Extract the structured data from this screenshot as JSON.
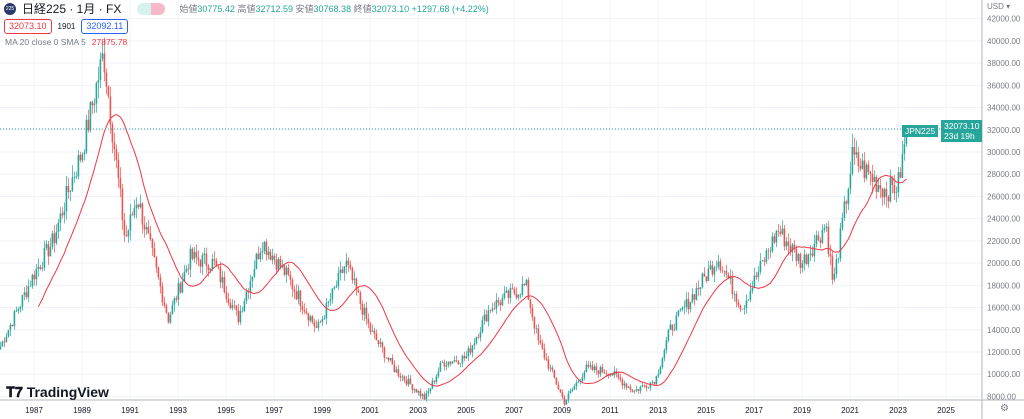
{
  "header": {
    "symbol": "日経225 · 1月 · FX",
    "logo_text": "225",
    "open_label": "始値",
    "open": "30775.42",
    "high_label": "高値",
    "high": "32712.59",
    "low_label": "安値",
    "low": "30768.38",
    "close_label": "終値",
    "close": "32073.10",
    "change": "+1297.68 (+4.22%)",
    "sell": "32073.10",
    "spread": "1901",
    "buy": "32092.11"
  },
  "indicator": {
    "label": "MA 20 close 0 SMA 5",
    "value": "27875.78"
  },
  "price_axis": {
    "currency": "USD ▾",
    "symbol_tag": "JPN225",
    "price_tag": "32073.10",
    "countdown": "23d 19h"
  },
  "watermark": "TradingView",
  "colors": {
    "up": "#26a69a",
    "down": "#ef5350",
    "ma": "#f23645"
  },
  "chart_data": {
    "type": "candlestick",
    "title": "日経225 · 1月 · FX",
    "yticks": [
      8000,
      10000,
      12000,
      14000,
      16000,
      18000,
      20000,
      22000,
      24000,
      26000,
      28000,
      30000,
      32000,
      34000,
      36000,
      38000,
      40000,
      42000
    ],
    "xticks": [
      "1987",
      "1989",
      "1991",
      "1993",
      "1995",
      "1997",
      "1999",
      "2001",
      "2003",
      "2005",
      "2007",
      "2009",
      "2011",
      "2013",
      "2015",
      "2017",
      "2019",
      "2021",
      "2023",
      "2025"
    ],
    "xtick_years": [
      1987,
      1989,
      1991,
      1993,
      1995,
      1997,
      1999,
      2001,
      2003,
      2005,
      2007,
      2009,
      2011,
      2013,
      2015,
      2017,
      2019,
      2021,
      2023,
      2025
    ],
    "approx_close_path": [
      [
        1985.6,
        12500
      ],
      [
        1987.0,
        19000
      ],
      [
        1987.8,
        22000
      ],
      [
        1988.5,
        27000
      ],
      [
        1989.0,
        30000
      ],
      [
        1989.9,
        38900
      ],
      [
        1990.8,
        22000
      ],
      [
        1991.3,
        26000
      ],
      [
        1992.6,
        15000
      ],
      [
        1993.5,
        20500
      ],
      [
        1994.5,
        20000
      ],
      [
        1995.5,
        15000
      ],
      [
        1996.5,
        22000
      ],
      [
        1997.5,
        19000
      ],
      [
        1998.8,
        14000
      ],
      [
        2000.0,
        20000
      ],
      [
        2001.0,
        14000
      ],
      [
        2002.0,
        10500
      ],
      [
        2003.3,
        7800
      ],
      [
        2004.0,
        11000
      ],
      [
        2005.0,
        11500
      ],
      [
        2006.0,
        16000
      ],
      [
        2007.5,
        18000
      ],
      [
        2008.0,
        13000
      ],
      [
        2009.1,
        7500
      ],
      [
        2010.0,
        10500
      ],
      [
        2011.0,
        10200
      ],
      [
        2012.0,
        8500
      ],
      [
        2012.9,
        9500
      ],
      [
        2013.5,
        14000
      ],
      [
        2015.5,
        20500
      ],
      [
        2016.5,
        16000
      ],
      [
        2018.0,
        23000
      ],
      [
        2019.0,
        20000
      ],
      [
        2020.0,
        23500
      ],
      [
        2020.3,
        18000
      ],
      [
        2021.1,
        29500
      ],
      [
        2022.0,
        27500
      ],
      [
        2022.5,
        26500
      ],
      [
        2023.0,
        27000
      ],
      [
        2023.4,
        32073
      ]
    ],
    "ma_period": 20,
    "last_price": 32073.1
  }
}
